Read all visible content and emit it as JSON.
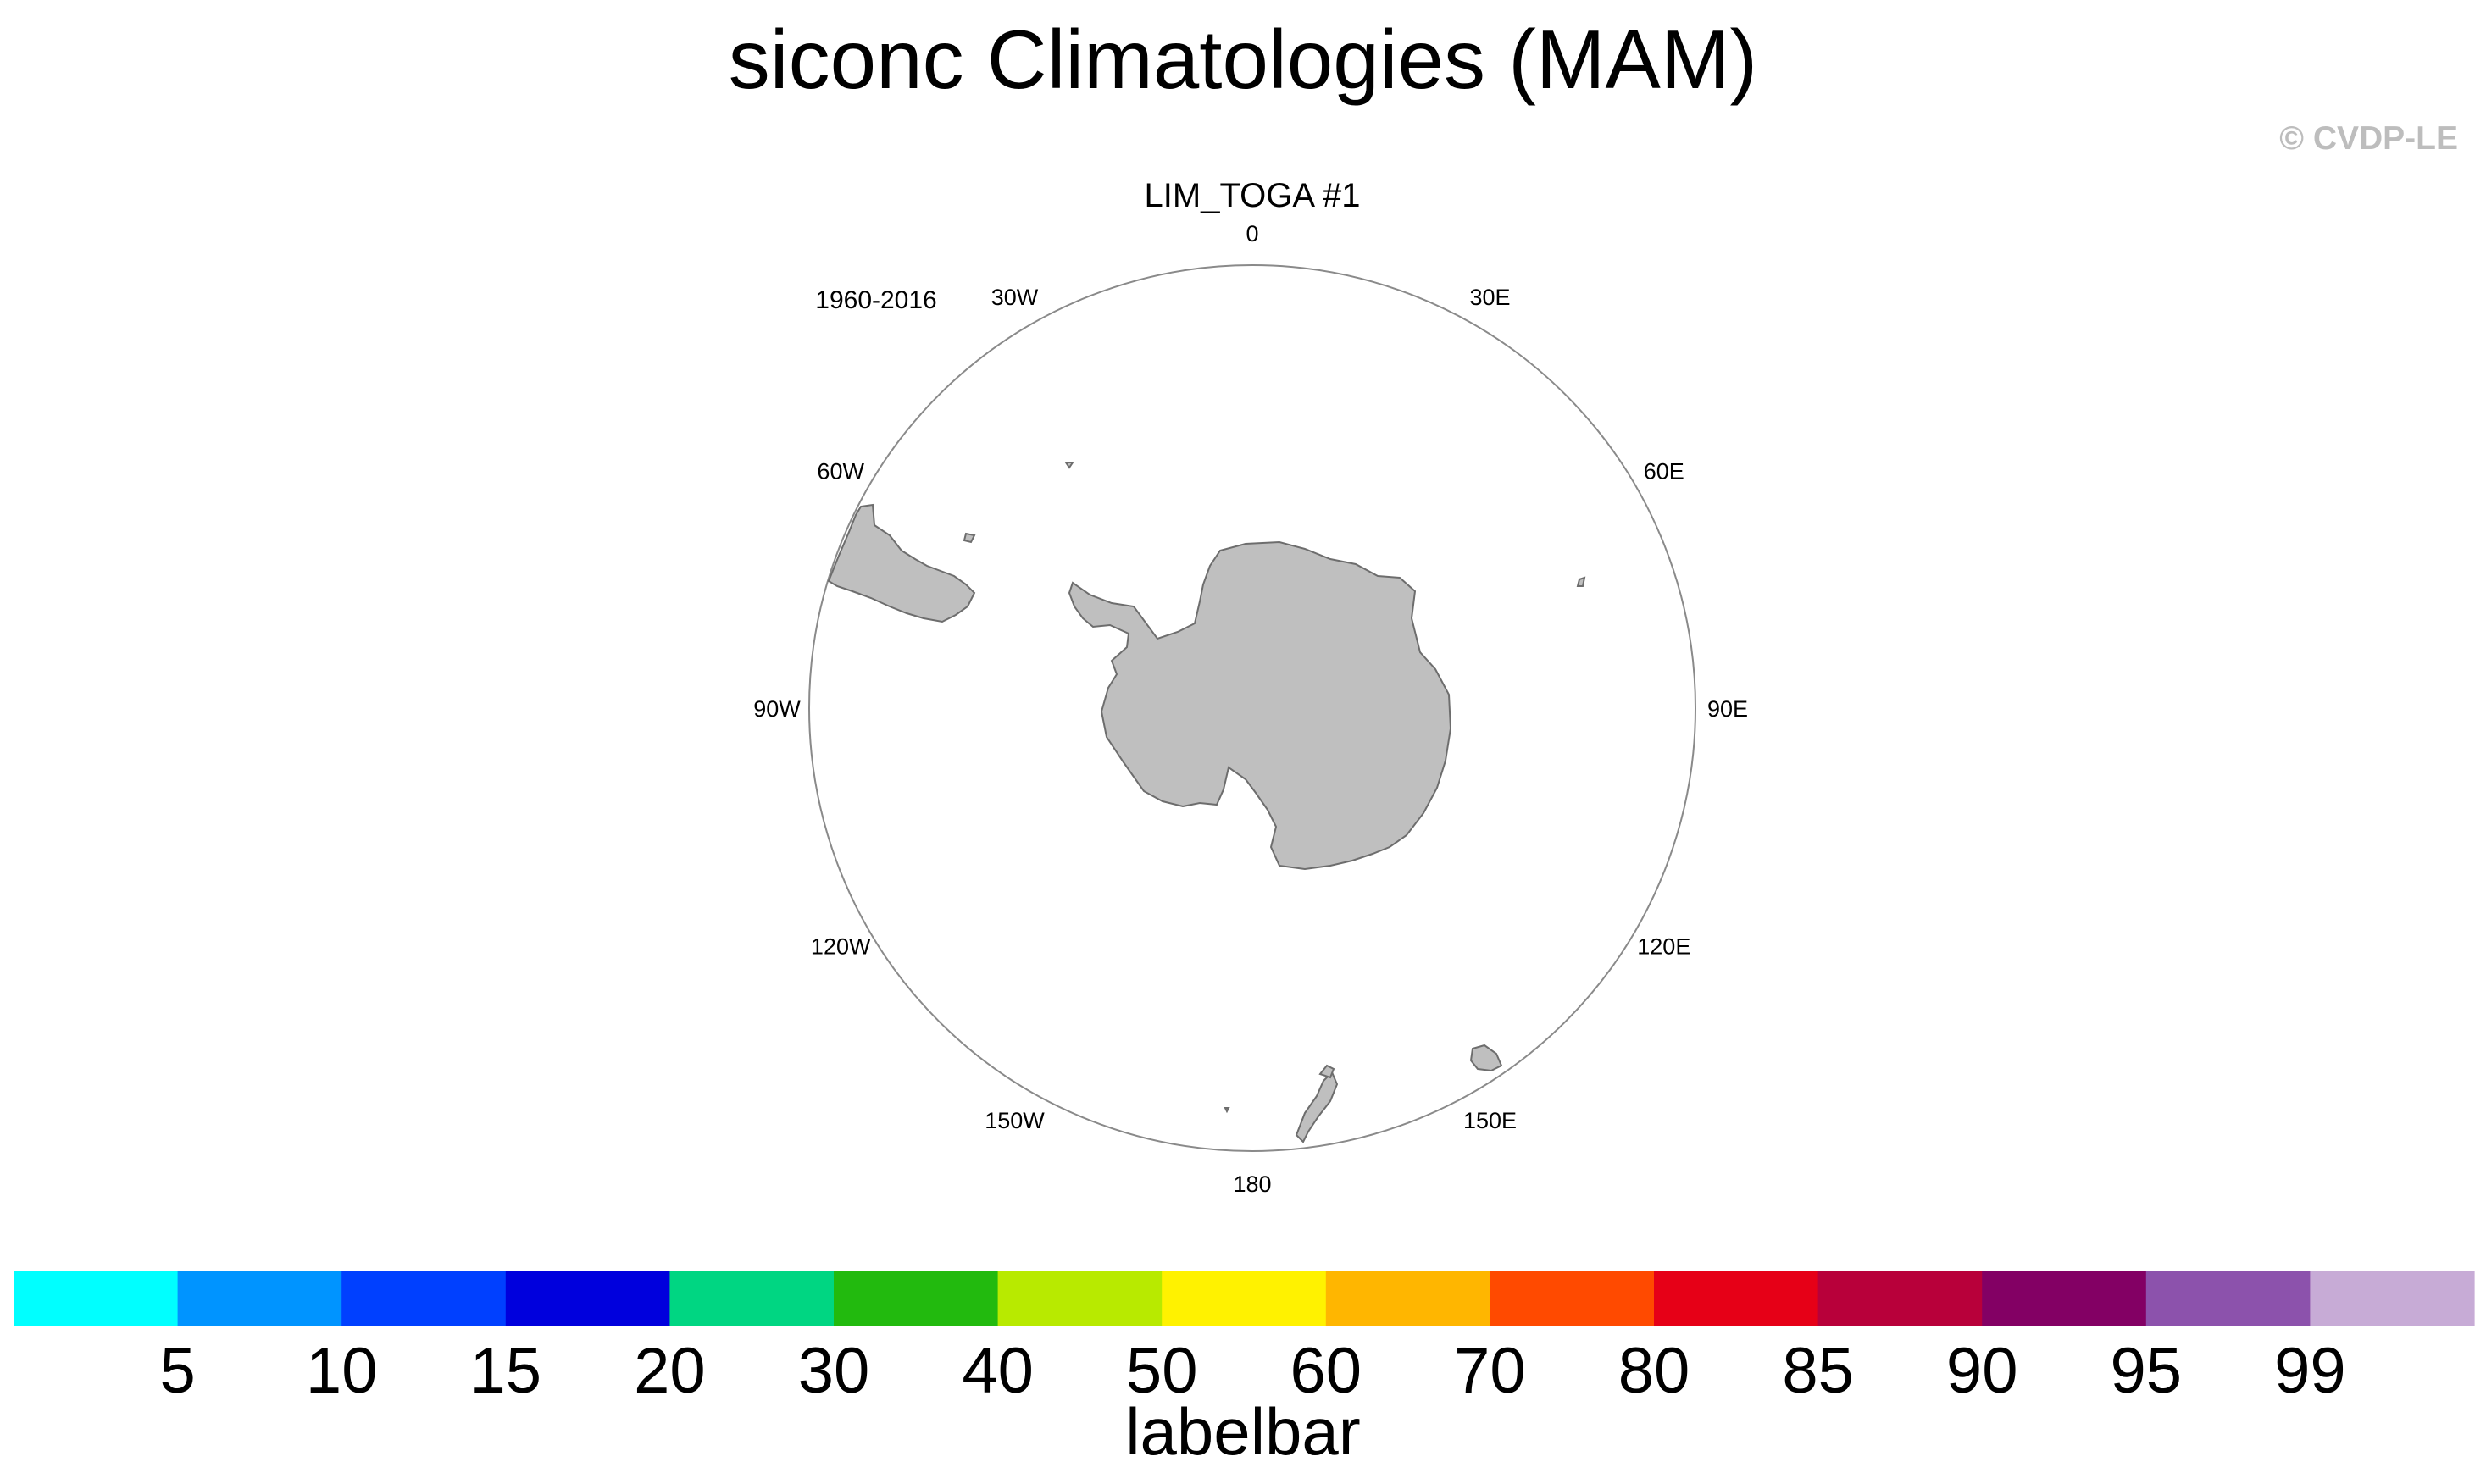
{
  "title": "siconc Climatologies (MAM)",
  "copyright": "© CVDP-LE",
  "panel": {
    "title": "LIM_TOGA #1",
    "period": "1960-2016",
    "longitude_labels": [
      {
        "text": "0",
        "lon": 0
      },
      {
        "text": "30E",
        "lon": 30
      },
      {
        "text": "60E",
        "lon": 60
      },
      {
        "text": "90E",
        "lon": 90
      },
      {
        "text": "120E",
        "lon": 120
      },
      {
        "text": "150E",
        "lon": 150
      },
      {
        "text": "180",
        "lon": 180
      },
      {
        "text": "150W",
        "lon": -150
      },
      {
        "text": "120W",
        "lon": -120
      },
      {
        "text": "90W",
        "lon": -90
      },
      {
        "text": "60W",
        "lon": -60
      },
      {
        "text": "30W",
        "lon": -30
      }
    ],
    "land_color": "#bfbfbf",
    "projection": "south polar stereographic"
  },
  "labelbar": {
    "title": "labelbar",
    "labels": [
      "5",
      "10",
      "15",
      "20",
      "30",
      "40",
      "50",
      "60",
      "70",
      "80",
      "85",
      "90",
      "95",
      "99"
    ],
    "colors": [
      "#00ffff",
      "#0094ff",
      "#0040ff",
      "#0000dd",
      "#00d682",
      "#22ba0e",
      "#b8ea00",
      "#fff200",
      "#ffb600",
      "#ff4a00",
      "#e60017",
      "#b8003a",
      "#830064",
      "#8c52ac",
      "#c7abd6"
    ]
  }
}
